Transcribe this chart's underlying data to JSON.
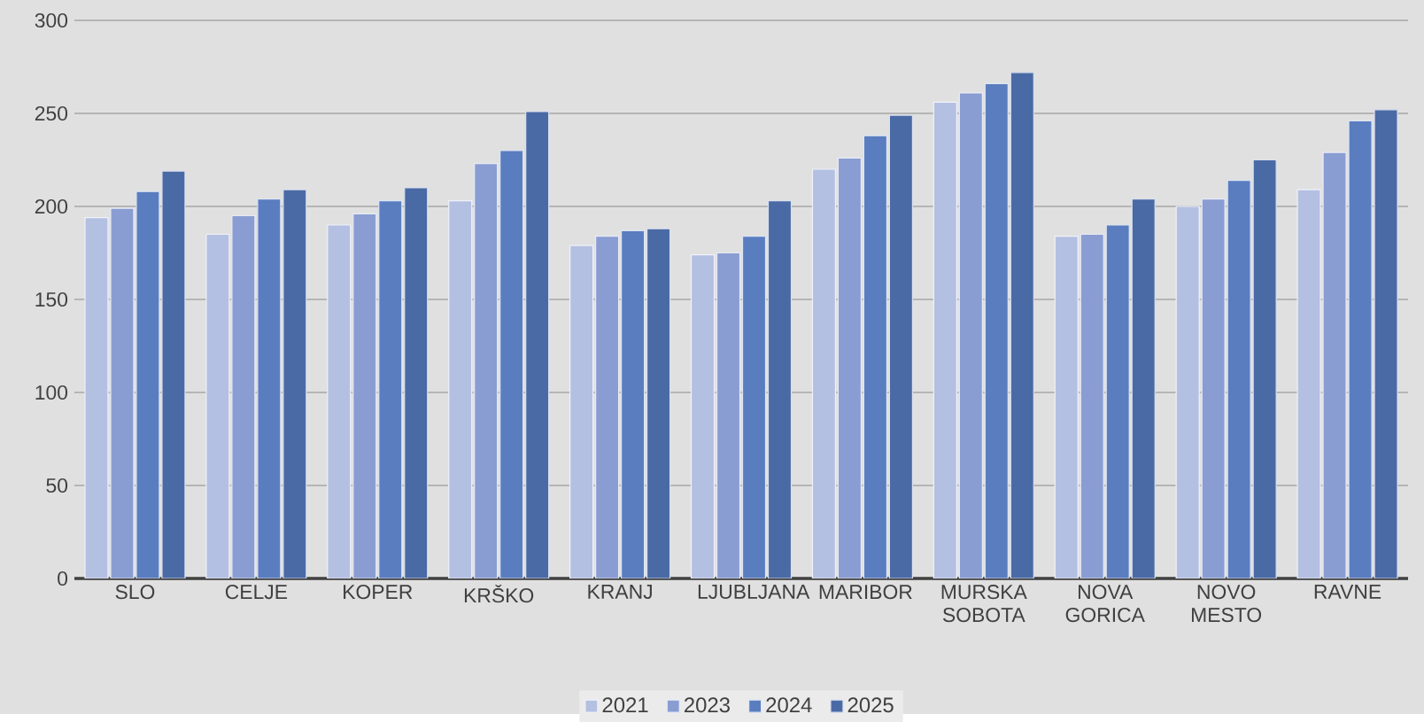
{
  "chart_data": {
    "type": "bar",
    "categories": [
      "SLO",
      "CELJE",
      "KOPER",
      "KRŠKO",
      "KRANJ",
      "LJUBLJANA",
      "MARIBOR",
      "MURSKA SOBOTA",
      "NOVA GORICA",
      "NOVO MESTO",
      "RAVNE"
    ],
    "series": [
      {
        "name": "2021",
        "color": "#b4c0e2",
        "values": [
          194,
          185,
          190,
          203,
          179,
          174,
          220,
          256,
          184,
          200,
          209
        ]
      },
      {
        "name": "2023",
        "color": "#8a9dd2",
        "values": [
          199,
          195,
          196,
          223,
          184,
          175,
          226,
          261,
          185,
          204,
          229
        ]
      },
      {
        "name": "2024",
        "color": "#5a7dc0",
        "values": [
          208,
          204,
          203,
          230,
          187,
          184,
          238,
          266,
          190,
          214,
          246
        ]
      },
      {
        "name": "2025",
        "color": "#4a6aa5",
        "values": [
          219,
          209,
          210,
          251,
          188,
          203,
          249,
          272,
          204,
          225,
          252
        ]
      }
    ],
    "ylim": [
      0,
      300
    ],
    "yticks": [
      0,
      50,
      100,
      150,
      200,
      250,
      300
    ],
    "grid": "y",
    "legend": "bottom"
  }
}
